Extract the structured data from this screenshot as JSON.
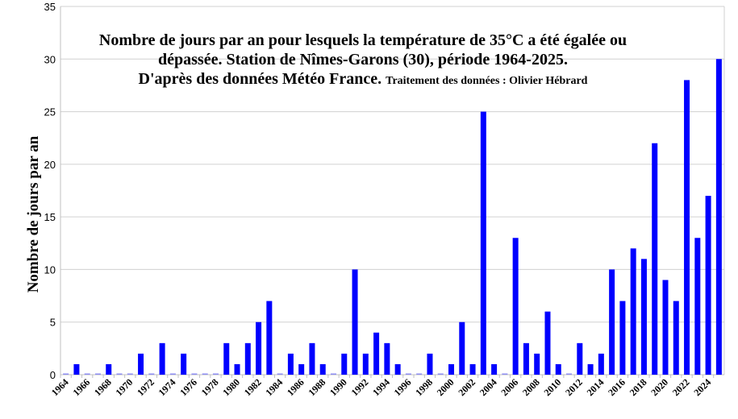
{
  "chart_data": {
    "type": "bar",
    "title": "Nombre de jours par an pour lesquels la température de 35°C a été égalée ou dépassée. Station de Nîmes-Garons (30), période 1964-2025. D'après des données Météo France.",
    "title_lines": [
      "Nombre de jours par an pour lesquels la température de 35°C a été égalée ou",
      "dépassée. Station de Nîmes-Garons (30), période 1964-2025.",
      "D'après des données Météo France."
    ],
    "subtitle": "Traitement des données : Olivier Hébrard",
    "xlabel": "",
    "ylabel": "Nombre de jours par an",
    "ylim": [
      0,
      35
    ],
    "yticks": [
      0,
      5,
      10,
      15,
      20,
      25,
      30,
      35
    ],
    "grid": true,
    "bar_color": "#0000ff",
    "categories": [
      1964,
      1965,
      1966,
      1967,
      1968,
      1969,
      1970,
      1971,
      1972,
      1973,
      1974,
      1975,
      1976,
      1977,
      1978,
      1979,
      1980,
      1981,
      1982,
      1983,
      1984,
      1985,
      1986,
      1987,
      1988,
      1989,
      1990,
      1991,
      1992,
      1993,
      1994,
      1995,
      1996,
      1997,
      1998,
      1999,
      2000,
      2001,
      2002,
      2003,
      2004,
      2005,
      2006,
      2007,
      2008,
      2009,
      2010,
      2011,
      2012,
      2013,
      2014,
      2015,
      2016,
      2017,
      2018,
      2019,
      2020,
      2021,
      2022,
      2023,
      2024,
      2025
    ],
    "values": [
      0,
      1,
      0,
      0,
      1,
      0,
      0,
      2,
      0,
      3,
      0,
      2,
      0,
      0,
      0,
      3,
      1,
      3,
      5,
      7,
      0,
      2,
      1,
      3,
      1,
      0,
      2,
      10,
      2,
      4,
      3,
      1,
      0,
      0,
      2,
      0,
      1,
      5,
      1,
      25,
      1,
      0,
      13,
      3,
      2,
      6,
      1,
      0,
      3,
      1,
      2,
      10,
      7,
      12,
      11,
      22,
      9,
      7,
      28,
      13,
      17,
      30
    ]
  }
}
